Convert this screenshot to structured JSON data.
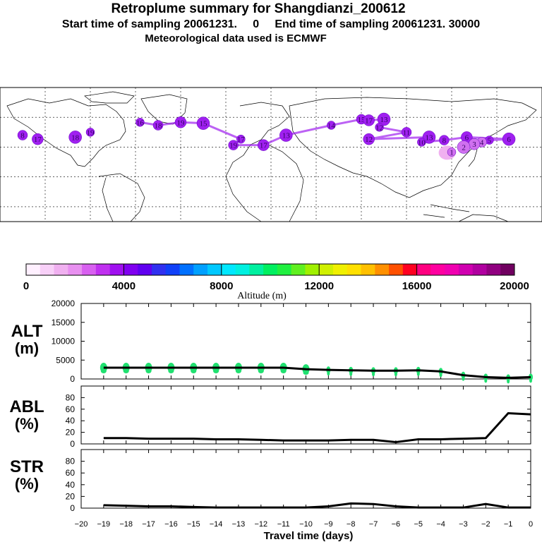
{
  "header": {
    "title": "Retroplume summary for Shangdianzi_200612",
    "line2": "Start time of sampling 20061231.     0     End time of sampling 20061231. 30000",
    "line3": "Meteorological data used is ECMWF"
  },
  "colors": {
    "plume_main": "#a020f0",
    "plume_light": "#f0b0f0",
    "alt_markers": "#20e070",
    "lines": "#000000"
  },
  "colorbar": {
    "ticks": [
      "0",
      "4000",
      "8000",
      "12000",
      "16000",
      "20000"
    ],
    "label": "Altitude (m)",
    "colors": [
      "#fff0ff",
      "#f8d0f8",
      "#f0b0f0",
      "#e890f0",
      "#d860f0",
      "#c030f0",
      "#a010f0",
      "#8000f0",
      "#6000f0",
      "#3030f0",
      "#1040f8",
      "#0070ff",
      "#00a0ff",
      "#00c8ff",
      "#00e8ff",
      "#00f0e0",
      "#00f0a0",
      "#00f060",
      "#20f040",
      "#60f020",
      "#a0f000",
      "#d0f000",
      "#f0f000",
      "#ffe000",
      "#ffc000",
      "#ff9000",
      "#ff5000",
      "#ff0020",
      "#ff0080",
      "#ff00a0",
      "#f000b0",
      "#d000b0",
      "#b000a0",
      "#900080",
      "#700060"
    ]
  },
  "map": {
    "markers": [
      {
        "label": "16",
        "lon": -87,
        "lat": 55
      },
      {
        "label": "18",
        "lon": -75,
        "lat": 52
      },
      {
        "label": "19",
        "lon": -60,
        "lat": 55
      },
      {
        "label": "15",
        "lon": -45,
        "lat": 54
      },
      {
        "label": "17",
        "lon": -20,
        "lat": 38
      },
      {
        "label": "19",
        "lon": -25,
        "lat": 32
      },
      {
        "label": "17",
        "lon": -5,
        "lat": 32
      },
      {
        "label": "13",
        "lon": 10,
        "lat": 42
      },
      {
        "label": "14",
        "lon": 40,
        "lat": 52
      },
      {
        "label": "15",
        "lon": 60,
        "lat": 58
      },
      {
        "label": "17",
        "lon": 65,
        "lat": 57
      },
      {
        "label": "13",
        "lon": 75,
        "lat": 58
      },
      {
        "label": "12",
        "lon": 72,
        "lat": 50
      },
      {
        "label": "11",
        "lon": 90,
        "lat": 45
      },
      {
        "label": "12",
        "lon": 65,
        "lat": 38
      },
      {
        "label": "13",
        "lon": 105,
        "lat": 40
      },
      {
        "label": "10",
        "lon": 100,
        "lat": 35
      },
      {
        "label": "8",
        "lon": 115,
        "lat": 37
      },
      {
        "label": "6",
        "lon": 130,
        "lat": 40
      },
      {
        "label": "6",
        "lon": 158,
        "lat": 38
      },
      {
        "label": "5",
        "lon": 145,
        "lat": 37
      },
      {
        "label": "4",
        "lon": 140,
        "lat": 35
      },
      {
        "label": "3",
        "lon": 135,
        "lat": 33
      },
      {
        "label": "2",
        "lon": 128,
        "lat": 30
      },
      {
        "label": "1",
        "lon": 120,
        "lat": 25
      },
      {
        "label": "8",
        "lon": -165,
        "lat": 42
      },
      {
        "label": "17",
        "lon": -155,
        "lat": 38
      },
      {
        "label": "18",
        "lon": -130,
        "lat": 40
      },
      {
        "label": "19",
        "lon": -120,
        "lat": 45
      }
    ]
  },
  "chart_data": [
    {
      "type": "scatter",
      "name": "ALT",
      "ylabel": "ALT (m)",
      "ylim": [
        0,
        20000
      ],
      "yticks": [
        "20000",
        "15000",
        "10000",
        "5000",
        "0"
      ],
      "x": [
        -19,
        -18,
        -17,
        -16,
        -15,
        -14,
        -13,
        -12,
        -11,
        -10,
        -9,
        -8,
        -7,
        -6,
        -5,
        -4,
        -3,
        -2,
        -1,
        0
      ],
      "values": [
        3000,
        3000,
        3000,
        3000,
        3000,
        3000,
        3000,
        3000,
        3000,
        2600,
        2400,
        2300,
        2200,
        2200,
        2300,
        2000,
        1000,
        500,
        300,
        500
      ]
    },
    {
      "type": "line",
      "name": "ABL",
      "ylabel": "ABL (%)",
      "ylim": [
        0,
        100
      ],
      "yticks": [
        "80",
        "60",
        "40",
        "20",
        "0"
      ],
      "x": [
        -19,
        -18,
        -17,
        -16,
        -15,
        -14,
        -13,
        -12,
        -11,
        -10,
        -9,
        -8,
        -7,
        -6,
        -5,
        -4,
        -3,
        -2,
        -1,
        0
      ],
      "values": [
        10,
        10,
        9,
        9,
        9,
        8,
        8,
        7,
        6,
        6,
        6,
        7,
        7,
        3,
        8,
        8,
        9,
        10,
        53,
        51
      ]
    },
    {
      "type": "line",
      "name": "STR",
      "ylabel": "STR (%)",
      "ylim": [
        0,
        100
      ],
      "yticks": [
        "80",
        "60",
        "40",
        "20",
        "0"
      ],
      "x": [
        -19,
        -18,
        -17,
        -16,
        -15,
        -14,
        -13,
        -12,
        -11,
        -10,
        -9,
        -8,
        -7,
        -6,
        -5,
        -4,
        -3,
        -2,
        -1,
        0
      ],
      "values": [
        5,
        4,
        3,
        3,
        2,
        1,
        1,
        1,
        1,
        1,
        3,
        8,
        7,
        3,
        1,
        1,
        1,
        7,
        1,
        1
      ]
    }
  ],
  "xaxis": {
    "label": "Travel time (days)",
    "ticks": [
      "−20",
      "−19",
      "−18",
      "−17",
      "−16",
      "−15",
      "−14",
      "−13",
      "−12",
      "−11",
      "−10",
      "−9",
      "−8",
      "−7",
      "−6",
      "−5",
      "−4",
      "−3",
      "−2",
      "−1",
      "0"
    ]
  },
  "panel_labels": {
    "alt_top": "ALT",
    "alt_bot": "(m)",
    "abl_top": "ABL",
    "abl_bot": "(%)",
    "str_top": "STR",
    "str_bot": "(%)"
  }
}
